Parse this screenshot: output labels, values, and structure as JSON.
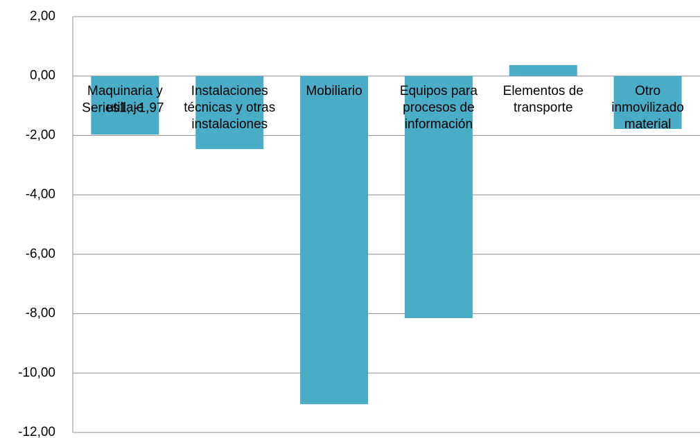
{
  "chart_data": {
    "type": "bar",
    "categories": [
      "Maquinaria y utillaje",
      "Instalaciones técnicas y otras instalaciones",
      "Mobiliario",
      "Equipos para procesos de información",
      "Elementos de transporte",
      "Otro inmovilizado material"
    ],
    "series": [
      {
        "name": "Series1",
        "color": "#4bacc6",
        "values": [
          -1.97,
          -2.46,
          -11.05,
          -8.15,
          0.37,
          -1.78
        ],
        "value_labels": [
          "Series1; -1,97",
          null,
          null,
          null,
          null,
          null
        ]
      }
    ],
    "ylim": [
      -12,
      2
    ],
    "yticks": [
      {
        "value": -12,
        "label": "-12,00"
      },
      {
        "value": -10,
        "label": "-10,00"
      },
      {
        "value": -8,
        "label": "-8,00"
      },
      {
        "value": -6,
        "label": "-6,00"
      },
      {
        "value": -4,
        "label": "-4,00"
      },
      {
        "value": -2,
        "label": "-2,00"
      },
      {
        "value": 0,
        "label": "0,00"
      },
      {
        "value": 2,
        "label": "2,00"
      }
    ],
    "grid": true
  }
}
